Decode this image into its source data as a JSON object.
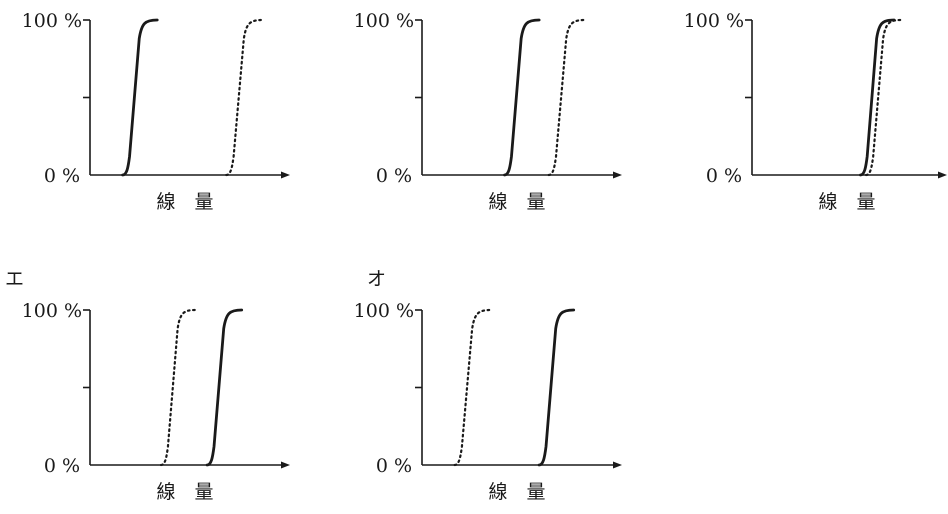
{
  "chart_data": [
    {
      "panel_label": "",
      "type": "line",
      "y_tick_labels": [
        "100 %",
        "0 %"
      ],
      "xlabel": "線　量",
      "series": [
        {
          "style": "solid",
          "x": [
            0.17,
            0.24,
            0.35
          ],
          "y": [
            0,
            50,
            100
          ]
        },
        {
          "style": "dotted",
          "x": [
            0.71,
            0.79,
            0.9
          ],
          "y": [
            0,
            50,
            100
          ]
        }
      ]
    },
    {
      "panel_label": "",
      "type": "line",
      "y_tick_labels": [
        "100 %",
        "0 %"
      ],
      "xlabel": "線　量",
      "series": [
        {
          "style": "solid",
          "x": [
            0.43,
            0.5,
            0.61
          ],
          "y": [
            0,
            50,
            100
          ]
        },
        {
          "style": "dotted",
          "x": [
            0.66,
            0.74,
            0.85
          ],
          "y": [
            0,
            50,
            100
          ]
        }
      ]
    },
    {
      "panel_label": "",
      "type": "line",
      "y_tick_labels": [
        "100 %",
        "0 %"
      ],
      "xlabel": "線　量",
      "series": [
        {
          "style": "solid",
          "x": [
            0.58,
            0.66,
            0.76
          ],
          "y": [
            0,
            50,
            100
          ]
        },
        {
          "style": "dotted",
          "x": [
            0.61,
            0.69,
            0.8
          ],
          "y": [
            0,
            50,
            100
          ]
        }
      ]
    },
    {
      "panel_label": "エ",
      "type": "line",
      "y_tick_labels": [
        "100 %",
        "0 %"
      ],
      "xlabel": "線　量",
      "series": [
        {
          "style": "solid",
          "x": [
            0.61,
            0.69,
            0.79
          ],
          "y": [
            0,
            50,
            100
          ]
        },
        {
          "style": "dotted",
          "x": [
            0.37,
            0.45,
            0.55
          ],
          "y": [
            0,
            50,
            100
          ]
        }
      ]
    },
    {
      "panel_label": "オ",
      "type": "line",
      "y_tick_labels": [
        "100 %",
        "0 %"
      ],
      "xlabel": "線　量",
      "series": [
        {
          "style": "solid",
          "x": [
            0.61,
            0.69,
            0.79
          ],
          "y": [
            0,
            50,
            100
          ]
        },
        {
          "style": "dotted",
          "x": [
            0.17,
            0.25,
            0.36
          ],
          "y": [
            0,
            50,
            100
          ]
        }
      ]
    }
  ]
}
